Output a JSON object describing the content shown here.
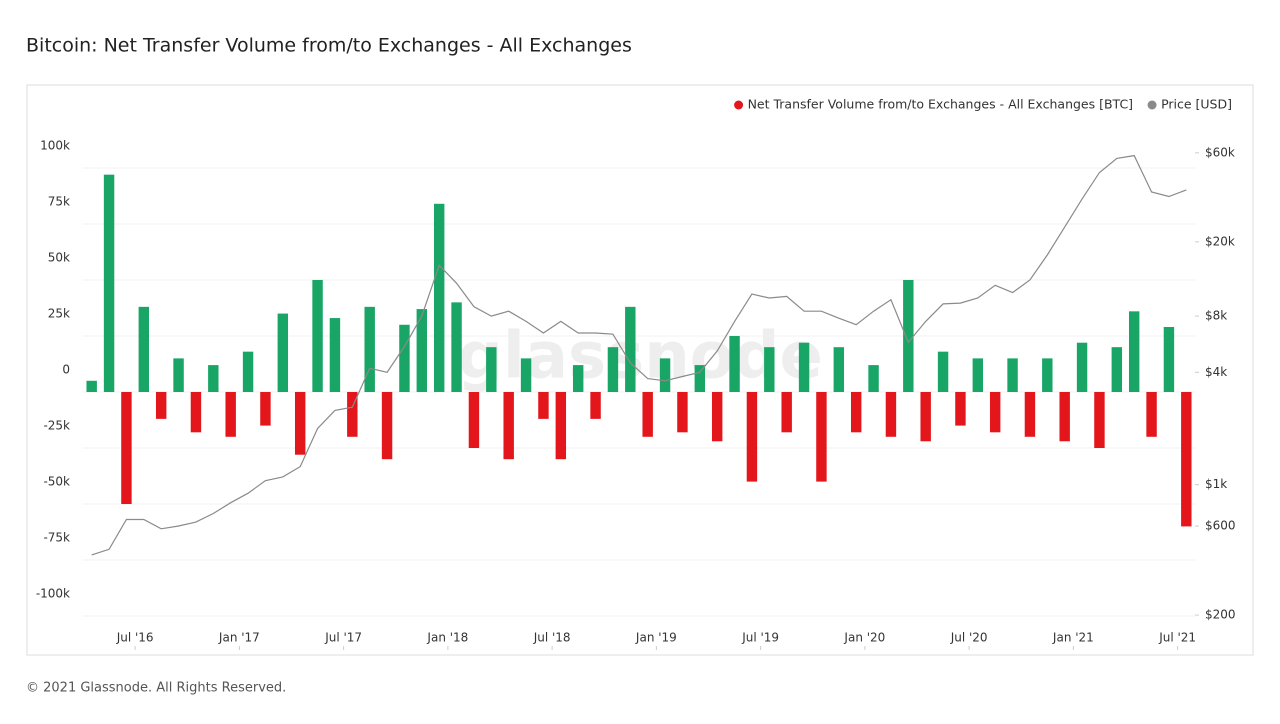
{
  "chart_data": {
    "type": "bar",
    "title": "Bitcoin: Net Transfer Volume from/to Exchanges - All Exchanges",
    "footer": "© 2021 Glassnode. All Rights Reserved.",
    "watermark": "glassnode",
    "legend_position": "top-right",
    "x": [
      "2016-04",
      "2016-05",
      "2016-06",
      "2016-07",
      "2016-08",
      "2016-09",
      "2016-10",
      "2016-11",
      "2016-12",
      "2017-01",
      "2017-02",
      "2017-03",
      "2017-04",
      "2017-05",
      "2017-06",
      "2017-07",
      "2017-08",
      "2017-09",
      "2017-10",
      "2017-11",
      "2017-12",
      "2018-01",
      "2018-02",
      "2018-03",
      "2018-04",
      "2018-05",
      "2018-06",
      "2018-07",
      "2018-08",
      "2018-09",
      "2018-10",
      "2018-11",
      "2018-12",
      "2019-01",
      "2019-02",
      "2019-03",
      "2019-04",
      "2019-05",
      "2019-06",
      "2019-07",
      "2019-08",
      "2019-09",
      "2019-10",
      "2019-11",
      "2019-12",
      "2020-01",
      "2020-02",
      "2020-03",
      "2020-04",
      "2020-05",
      "2020-06",
      "2020-07",
      "2020-08",
      "2020-09",
      "2020-10",
      "2020-11",
      "2020-12",
      "2021-01",
      "2021-02",
      "2021-03",
      "2021-04",
      "2021-05",
      "2021-06",
      "2021-07"
    ],
    "xlim": [
      "2016-04",
      "2021-08"
    ],
    "xticks": [
      {
        "value": "2016-07",
        "label": "Jul '16"
      },
      {
        "value": "2017-01",
        "label": "Jan '17"
      },
      {
        "value": "2017-07",
        "label": "Jul '17"
      },
      {
        "value": "2018-01",
        "label": "Jan '18"
      },
      {
        "value": "2018-07",
        "label": "Jul '18"
      },
      {
        "value": "2019-01",
        "label": "Jan '19"
      },
      {
        "value": "2019-07",
        "label": "Jul '19"
      },
      {
        "value": "2020-01",
        "label": "Jan '20"
      },
      {
        "value": "2020-07",
        "label": "Jul '20"
      },
      {
        "value": "2021-01",
        "label": "Jan '21"
      },
      {
        "value": "2021-07",
        "label": "Jul '21"
      }
    ],
    "ylim": [
      -110700,
      121400
    ],
    "yticks": [
      {
        "value": -100000,
        "label": "-100k"
      },
      {
        "value": -75000,
        "label": "-75k"
      },
      {
        "value": -50000,
        "label": "-50k"
      },
      {
        "value": -25000,
        "label": "-25k"
      },
      0,
      {
        "value": 25000,
        "label": "25k"
      },
      {
        "value": 50000,
        "label": "50k"
      },
      {
        "value": 75000,
        "label": "75k"
      },
      {
        "value": 100000,
        "label": "100k"
      }
    ],
    "y2lim": [
      147,
      90000
    ],
    "y2_log": true,
    "y2ticks": [
      {
        "value": 200,
        "label": "$200"
      },
      {
        "value": 600,
        "label": "$600"
      },
      {
        "value": 1000,
        "label": "$1k"
      },
      {
        "value": 4000,
        "label": "$4k"
      },
      {
        "value": 8000,
        "label": "$8k"
      },
      {
        "value": 20000,
        "label": "$20k"
      },
      {
        "value": 60000,
        "label": "$60k"
      }
    ],
    "grid": true,
    "series": [
      {
        "name": "Net Transfer Volume from/to Exchanges - All Exchanges [BTC]",
        "color": "#e3171b",
        "positive_color": "#18a566",
        "values": [
          5000,
          97000,
          -50000,
          38000,
          -12000,
          15000,
          -18000,
          12000,
          -20000,
          18000,
          -15000,
          35000,
          -28000,
          50000,
          33000,
          -20000,
          38000,
          -30000,
          30000,
          37000,
          84000,
          40000,
          -25000,
          20000,
          -30000,
          15000,
          -12000,
          -30000,
          12000,
          -12000,
          20000,
          38000,
          -20000,
          15000,
          -18000,
          12000,
          -22000,
          25000,
          -40000,
          20000,
          -18000,
          22000,
          -40000,
          20000,
          -18000,
          12000,
          -20000,
          50000,
          -22000,
          18000,
          -15000,
          15000,
          -18000,
          15000,
          -20000,
          15000,
          -22000,
          22000,
          -25000,
          20000,
          36000,
          -20000,
          29000,
          -60000
        ]
      },
      {
        "name": "Price [USD]",
        "color": "#8a8a8a",
        "axis": "y2",
        "values": [
          420,
          450,
          650,
          650,
          580,
          600,
          630,
          700,
          800,
          900,
          1050,
          1100,
          1250,
          2000,
          2500,
          2600,
          4200,
          4000,
          5500,
          8000,
          15000,
          12000,
          9000,
          8000,
          8500,
          7500,
          6500,
          7500,
          6500,
          6500,
          6400,
          4500,
          3700,
          3600,
          3800,
          4000,
          5200,
          7500,
          10500,
          10000,
          10200,
          8500,
          8500,
          7800,
          7200,
          8500,
          9800,
          5800,
          7500,
          9300,
          9400,
          10000,
          11700,
          10700,
          12500,
          17000,
          24000,
          34000,
          47000,
          56000,
          58000,
          37000,
          35000,
          38000
        ]
      }
    ]
  }
}
